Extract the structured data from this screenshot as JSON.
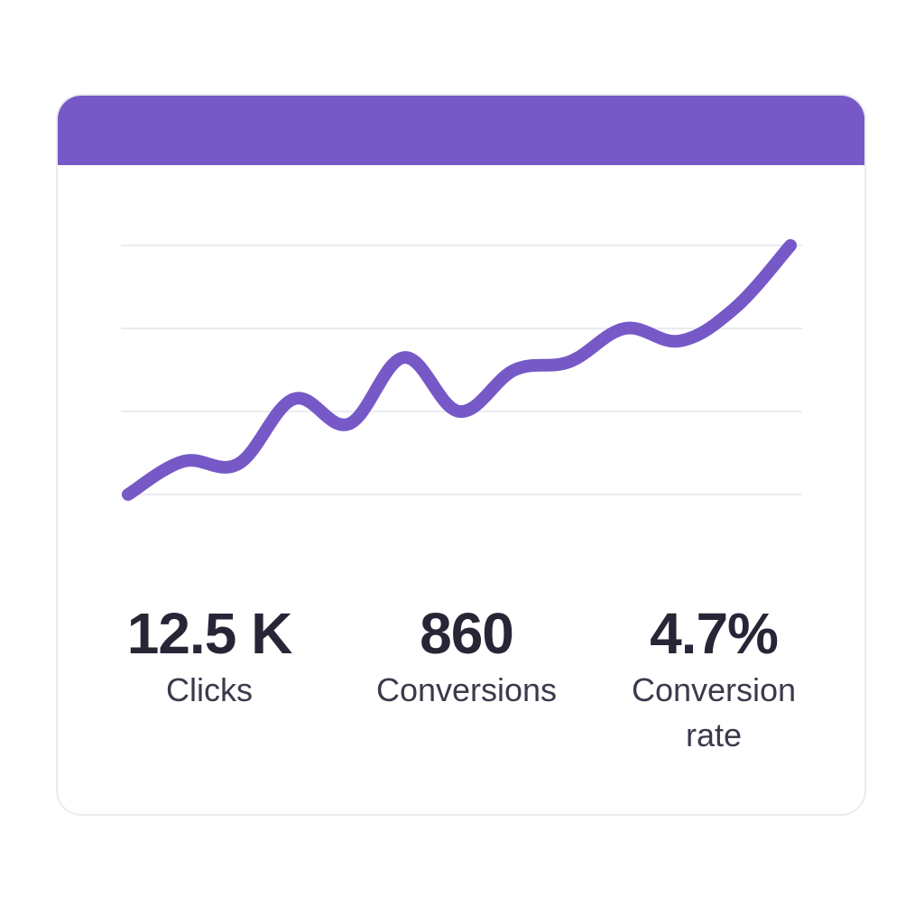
{
  "colors": {
    "accent": "#7659c6",
    "text": "#262637",
    "grid": "#ebebf3"
  },
  "chart_data": {
    "type": "line",
    "title": "",
    "xlabel": "",
    "ylabel": "",
    "ylim": [
      0,
      3
    ],
    "grid": true,
    "x": [
      0,
      1,
      2,
      3,
      4,
      5,
      6,
      7,
      8,
      9,
      10,
      11,
      12
    ],
    "series": [
      {
        "values": [
          0.0,
          0.4,
          0.37,
          1.15,
          0.85,
          1.65,
          1.0,
          1.5,
          1.6,
          2.0,
          1.85,
          2.25,
          3.0
        ]
      }
    ]
  },
  "stats": [
    {
      "value": "12.5 K",
      "label": "Clicks"
    },
    {
      "value": "860",
      "label": "Conversions"
    },
    {
      "value": "4.7%",
      "label": "Conversion rate"
    }
  ]
}
